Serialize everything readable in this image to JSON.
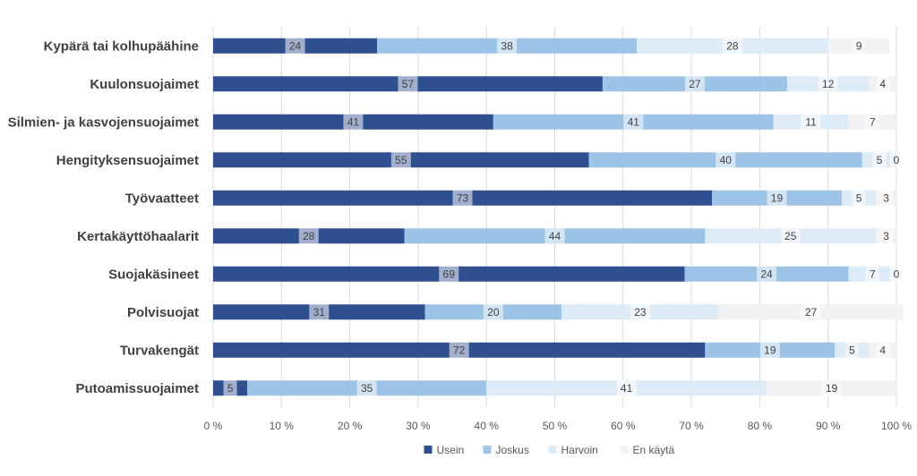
{
  "chart_data": {
    "type": "bar",
    "orientation": "horizontal",
    "stacked": "percent",
    "categories": [
      "Kypärä tai kolhupäähine",
      "Kuulonsuojaimet",
      "Silmien- ja kasvojensuojaimet",
      "Hengityksensuojaimet",
      "Työvaatteet",
      "Kertakäyttöhaalarit",
      "Suojakäsineet",
      "Polvisuojat",
      "Turvakengät",
      "Putoamissuojaimet"
    ],
    "series": [
      {
        "name": "Usein",
        "color": "#2f4f8f",
        "values": [
          24,
          57,
          41,
          55,
          73,
          28,
          69,
          31,
          72,
          5
        ]
      },
      {
        "name": "Joskus",
        "color": "#9dc3e6",
        "values": [
          38,
          27,
          41,
          40,
          19,
          44,
          24,
          20,
          19,
          35
        ]
      },
      {
        "name": "Harvoin",
        "color": "#ddebf7",
        "values": [
          28,
          12,
          11,
          5,
          5,
          25,
          7,
          23,
          5,
          41
        ]
      },
      {
        "name": "En käytä",
        "color": "#f2f2f2",
        "values": [
          9,
          4,
          7,
          0,
          3,
          3,
          0,
          27,
          4,
          19
        ]
      }
    ],
    "x_ticks": [
      "0 %",
      "10 %",
      "20 %",
      "30 %",
      "40 %",
      "50 %",
      "60 %",
      "70 %",
      "80 %",
      "90 %",
      "100 %"
    ],
    "xlim": [
      0,
      100
    ],
    "grid": "vertical",
    "legend_position": "bottom",
    "title": "",
    "xlabel": "",
    "ylabel": ""
  }
}
